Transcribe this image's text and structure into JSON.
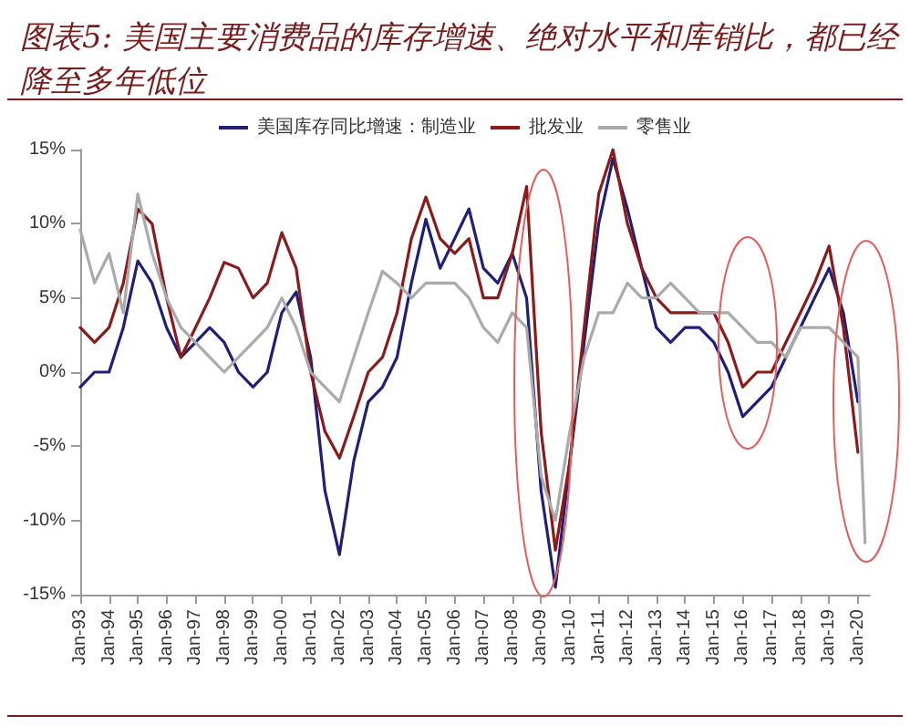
{
  "chart_data": {
    "type": "line",
    "title": "图表5: 美国主要消费品的库存增速、绝对水平和库销比，都已经降至多年低位",
    "x": [
      "1993-01",
      "1993-07",
      "1994-01",
      "1994-07",
      "1995-01",
      "1995-07",
      "1996-01",
      "1996-07",
      "1997-01",
      "1997-07",
      "1998-01",
      "1998-07",
      "1999-01",
      "1999-07",
      "2000-01",
      "2000-07",
      "2001-01",
      "2001-07",
      "2002-01",
      "2002-07",
      "2003-01",
      "2003-07",
      "2004-01",
      "2004-07",
      "2005-01",
      "2005-07",
      "2006-01",
      "2006-07",
      "2007-01",
      "2007-07",
      "2008-01",
      "2008-07",
      "2009-01",
      "2009-07",
      "2010-01",
      "2010-07",
      "2011-01",
      "2011-07",
      "2012-01",
      "2012-07",
      "2013-01",
      "2013-07",
      "2014-01",
      "2014-07",
      "2015-01",
      "2015-07",
      "2016-01",
      "2016-07",
      "2017-01",
      "2017-07",
      "2018-01",
      "2018-07",
      "2019-01",
      "2019-07",
      "2020-01",
      "2020-04"
    ],
    "series": [
      {
        "name": "美国库存同比增速：制造业",
        "color": "#1f1f7a",
        "values": [
          -1,
          0,
          0,
          3,
          7.5,
          6,
          3,
          1,
          2,
          3,
          2,
          0,
          -1,
          0,
          4,
          5.4,
          1,
          -8,
          -12.3,
          -6,
          -2,
          -1,
          1,
          6,
          10.3,
          7,
          9,
          11,
          7,
          6,
          8,
          5,
          -8,
          -14.5,
          -6,
          2,
          10,
          14.4,
          11,
          7,
          3,
          2,
          3,
          3,
          2,
          0,
          -3,
          -2,
          -1,
          1,
          3,
          5,
          7,
          4,
          -2,
          null
        ]
      },
      {
        "name": "批发业",
        "color": "#8b1a1a",
        "values": [
          3,
          2,
          3,
          6,
          11,
          10,
          5,
          1,
          3,
          5,
          7.4,
          7,
          5,
          6,
          9.4,
          7,
          0,
          -4,
          -5.8,
          -3,
          0,
          1,
          4,
          9,
          11.8,
          9,
          8,
          9,
          5,
          5,
          8,
          12.5,
          -4,
          -12,
          -6,
          3,
          12,
          15,
          10,
          7,
          5,
          4,
          4,
          4,
          4,
          2,
          -1,
          0,
          0,
          2,
          4,
          6,
          8.5,
          3,
          -5.4,
          null
        ]
      },
      {
        "name": "零售业",
        "color": "#aaaaaa",
        "values": [
          9.6,
          6,
          8,
          4,
          12,
          8,
          5,
          3,
          2,
          1,
          0,
          1,
          2,
          3,
          5,
          3,
          0,
          -1,
          -2,
          1,
          4,
          6.8,
          6,
          5,
          6,
          6,
          6,
          5,
          3,
          2,
          4,
          3,
          -7,
          -10,
          -4,
          1,
          4,
          4,
          6,
          5,
          5,
          6,
          5,
          4,
          4,
          4,
          3,
          2,
          2,
          1,
          3,
          3,
          3,
          2,
          1,
          -11.5
        ]
      }
    ],
    "xlim": [
      "1993-01",
      "2020-06"
    ],
    "xticks": [
      {
        "value": "1993-01",
        "label": "Jan-93"
      },
      {
        "value": "1994-01",
        "label": "Jan-94"
      },
      {
        "value": "1995-01",
        "label": "Jan-95"
      },
      {
        "value": "1996-01",
        "label": "Jan-96"
      },
      {
        "value": "1997-01",
        "label": "Jan-97"
      },
      {
        "value": "1998-01",
        "label": "Jan-98"
      },
      {
        "value": "1999-01",
        "label": "Jan-99"
      },
      {
        "value": "2000-01",
        "label": "Jan-00"
      },
      {
        "value": "2001-01",
        "label": "Jan-01"
      },
      {
        "value": "2002-01",
        "label": "Jan-02"
      },
      {
        "value": "2003-01",
        "label": "Jan-03"
      },
      {
        "value": "2004-01",
        "label": "Jan-04"
      },
      {
        "value": "2005-01",
        "label": "Jan-05"
      },
      {
        "value": "2006-01",
        "label": "Jan-06"
      },
      {
        "value": "2007-01",
        "label": "Jan-07"
      },
      {
        "value": "2008-01",
        "label": "Jan-08"
      },
      {
        "value": "2009-01",
        "label": "Jan-09"
      },
      {
        "value": "2010-01",
        "label": "Jan-10"
      },
      {
        "value": "2011-01",
        "label": "Jan-11"
      },
      {
        "value": "2012-01",
        "label": "Jan-12"
      },
      {
        "value": "2013-01",
        "label": "Jan-13"
      },
      {
        "value": "2014-01",
        "label": "Jan-14"
      },
      {
        "value": "2015-01",
        "label": "Jan-15"
      },
      {
        "value": "2016-01",
        "label": "Jan-16"
      },
      {
        "value": "2017-01",
        "label": "Jan-17"
      },
      {
        "value": "2018-01",
        "label": "Jan-18"
      },
      {
        "value": "2019-01",
        "label": "Jan-19"
      },
      {
        "value": "2020-01",
        "label": "Jan-20"
      }
    ],
    "ylim": [
      -15,
      15
    ],
    "yticks": [
      {
        "value": -15,
        "label": "-15%"
      },
      {
        "value": -10,
        "label": "-10%"
      },
      {
        "value": -5,
        "label": "-5%"
      },
      {
        "value": 0,
        "label": "0%"
      },
      {
        "value": 5,
        "label": "5%"
      },
      {
        "value": 10,
        "label": "10%"
      },
      {
        "value": 15,
        "label": "15%"
      }
    ],
    "grid": false,
    "legend": "top",
    "marker": "none",
    "line_style": "solid"
  }
}
